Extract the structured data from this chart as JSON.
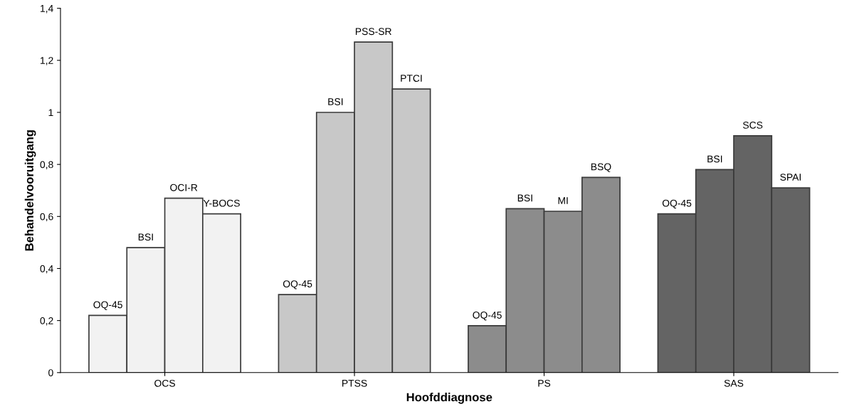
{
  "chart_data": {
    "type": "bar",
    "xlabel": "Hoofddiagnose",
    "ylabel": "Behandelvooruitgang",
    "categories": [
      "OCS",
      "PTSS",
      "PS",
      "SAS"
    ],
    "series": [
      {
        "values": [
          0.22,
          0.3,
          0.18,
          0.61
        ],
        "colors": [
          "#f2f2f2",
          "#c8c8c8",
          "#8c8c8c",
          "#646464"
        ],
        "value_labels": [
          "OQ-45",
          "OQ-45",
          "OQ-45",
          "OQ-45"
        ]
      },
      {
        "values": [
          0.48,
          1.0,
          0.63,
          0.78
        ],
        "colors": [
          "#f2f2f2",
          "#c8c8c8",
          "#8c8c8c",
          "#646464"
        ],
        "value_labels": [
          "BSI",
          "BSI",
          "BSI",
          "BSI"
        ]
      },
      {
        "values": [
          0.67,
          1.27,
          0.62,
          0.91
        ],
        "colors": [
          "#f2f2f2",
          "#c8c8c8",
          "#8c8c8c",
          "#646464"
        ],
        "value_labels": [
          "OCI-R",
          "PSS-SR",
          "MI",
          "SCS"
        ]
      },
      {
        "values": [
          0.61,
          1.09,
          0.75,
          0.71
        ],
        "colors": [
          "#f2f2f2",
          "#c8c8c8",
          "#8c8c8c",
          "#646464"
        ],
        "value_labels": [
          "Y-BOCS",
          "PTCI",
          "BSQ",
          "SPAI"
        ]
      }
    ],
    "ylim": [
      0,
      1.4
    ],
    "yticks": [
      0,
      {
        "value": 0.2,
        "label": "0,2"
      },
      {
        "value": 0.4,
        "label": "0,4"
      },
      {
        "value": 0.6,
        "label": "0,6"
      },
      {
        "value": 0.8,
        "label": "0,8"
      },
      1,
      {
        "value": 1.2,
        "label": "1,2"
      },
      {
        "value": 1.4,
        "label": "1,4"
      }
    ],
    "grid": false
  }
}
